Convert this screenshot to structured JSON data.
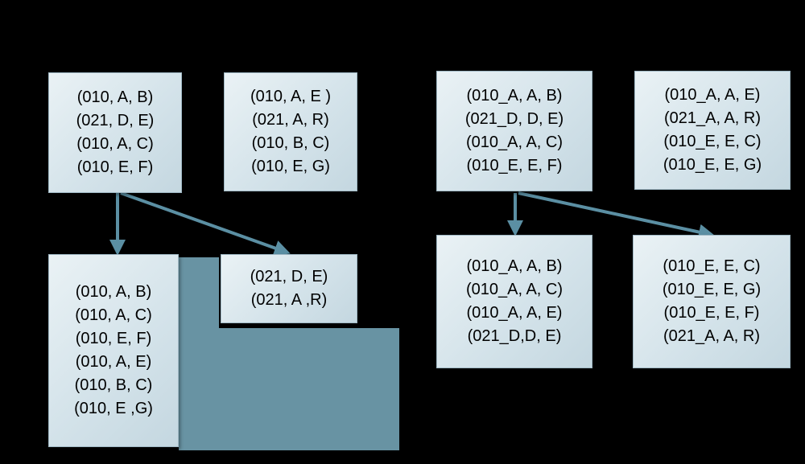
{
  "diagram": {
    "left": {
      "source_boxes": [
        {
          "lines": [
            "(010, A, B)",
            "(021, D, E)",
            "(010, A, C)",
            "(010, E, F)"
          ]
        },
        {
          "lines": [
            "(010, A, E )",
            "(021, A, R)",
            "(010, B, C)",
            "(010, E, G)"
          ]
        }
      ],
      "result_boxes": [
        {
          "lines": [
            "(010, A, B)",
            "(010, A, C)",
            "(010, E, F)",
            "(010, A, E)",
            "(010, B, C)",
            "(010, E ,G)"
          ]
        },
        {
          "lines": [
            "(021, D, E)",
            "(021, A ,R)"
          ]
        }
      ]
    },
    "right": {
      "source_boxes": [
        {
          "lines": [
            "(010_A, A, B)",
            "(021_D, D, E)",
            "(010_A, A, C)",
            "(010_E, E, F)"
          ]
        },
        {
          "lines": [
            "(010_A, A, E)",
            "(021_A, A, R)",
            "(010_E, E, C)",
            "(010_E, E, G)"
          ]
        }
      ],
      "result_boxes": [
        {
          "lines": [
            "(010_A, A, B)",
            "(010_A, A, C)",
            "(010_A, A, E)",
            "(021_D,D, E)"
          ]
        },
        {
          "lines": [
            "(010_E, E, C)",
            "(010_E, E, G)",
            "(010_E, E, F)",
            "(021_A, A, R)"
          ]
        }
      ]
    },
    "colors": {
      "background": "#000000",
      "box_fill": "#d4e3ea",
      "box_border": "#9fb8c4",
      "arrow": "#5b8fa3",
      "filler": "#6893a3"
    }
  }
}
